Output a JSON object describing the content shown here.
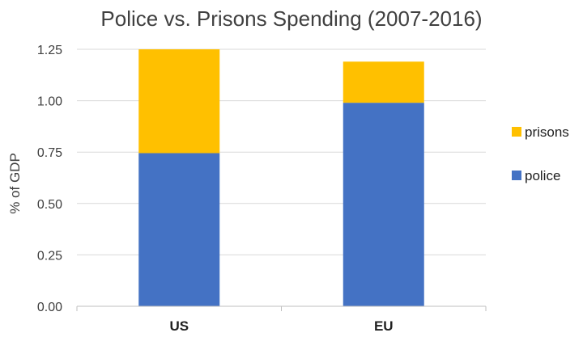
{
  "chart_data": {
    "type": "bar",
    "stacked": true,
    "title": "Police vs. Prisons Spending (2007-2016)",
    "xlabel": "",
    "ylabel": "% of GDP",
    "categories": [
      "US",
      "EU"
    ],
    "series": [
      {
        "name": "police",
        "values": [
          0.745,
          0.99
        ],
        "color": "#4472C4"
      },
      {
        "name": "prisons",
        "values": [
          0.505,
          0.2
        ],
        "color": "#FFC000"
      }
    ],
    "ylim": [
      0,
      1.25
    ],
    "yticks": [
      "0.00",
      "0.25",
      "0.50",
      "0.75",
      "1.00",
      "1.25"
    ],
    "grid": true,
    "legend_position": "right",
    "legend_order": [
      "prisons",
      "police"
    ]
  }
}
